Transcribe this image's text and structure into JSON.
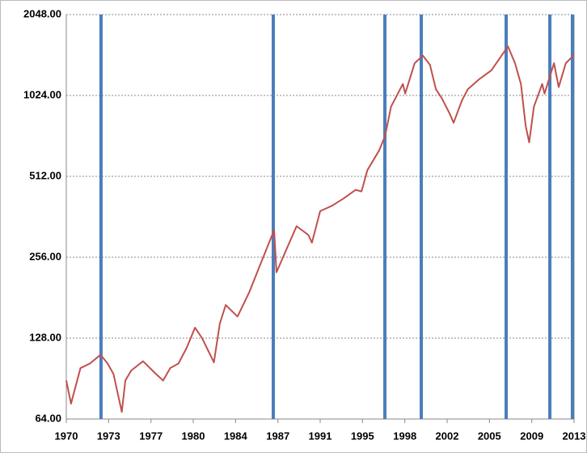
{
  "chart_data": {
    "type": "line",
    "x": [
      1970.0,
      1970.4,
      1971.2,
      1972.0,
      1972.9,
      1973.5,
      1974.0,
      1974.7,
      1975.0,
      1975.5,
      1976.5,
      1977.5,
      1978.2,
      1978.8,
      1979.5,
      1980.2,
      1980.9,
      1981.5,
      1982.5,
      1983.0,
      1983.5,
      1984.5,
      1985.5,
      1986.5,
      1987.6,
      1987.8,
      1988.5,
      1989.5,
      1990.5,
      1990.8,
      1991.5,
      1992.5,
      1993.5,
      1994.5,
      1995.0,
      1995.5,
      1996.5,
      1997.0,
      1997.5,
      1998.5,
      1998.7,
      1999.5,
      2000.2,
      2000.8,
      2001.3,
      2001.8,
      2002.5,
      2002.8,
      2003.5,
      2004.0,
      2005.0,
      2006.0,
      2007.4,
      2008.0,
      2008.5,
      2008.9,
      2009.2,
      2009.6,
      2010.3,
      2010.5,
      2011.3,
      2011.7,
      2012.3,
      2012.8,
      2013.0
    ],
    "values": [
      89,
      73,
      99,
      103,
      111,
      103,
      94,
      68,
      89,
      97,
      105,
      95,
      89,
      99,
      103,
      118,
      140,
      128,
      104,
      145,
      170,
      154,
      190,
      245,
      323,
      225,
      265,
      334,
      310,
      290,
      380,
      398,
      424,
      456,
      450,
      540,
      640,
      725,
      930,
      1130,
      1040,
      1350,
      1440,
      1330,
      1080,
      1000,
      870,
      810,
      980,
      1080,
      1180,
      1270,
      1560,
      1350,
      1130,
      790,
      685,
      930,
      1130,
      1040,
      1350,
      1100,
      1350,
      1420,
      1460
    ],
    "color": "#c0504d",
    "vertical_lines": [
      1972.94,
      1987.53,
      1996.98,
      2000.06,
      2007.25,
      2010.95,
      2012.86
    ],
    "vertical_line_color": "#4a7ebb",
    "xlim": [
      1970,
      2013
    ],
    "xticks": [
      1970,
      {
        "value": 1973.58,
        "label": "1973"
      },
      {
        "value": 1977.17,
        "label": "1977"
      },
      {
        "value": 1980.75,
        "label": "1980"
      },
      {
        "value": 1984.33,
        "label": "1984"
      },
      {
        "value": 1987.92,
        "label": "1987"
      },
      {
        "value": 1991.5,
        "label": "1991"
      },
      {
        "value": 1995.08,
        "label": "1995"
      },
      {
        "value": 1998.67,
        "label": "1998"
      },
      {
        "value": 2002.25,
        "label": "2002"
      },
      {
        "value": 2005.83,
        "label": "2005"
      },
      {
        "value": 2009.42,
        "label": "2009"
      },
      2013
    ],
    "ylim": [
      64,
      2048
    ],
    "yticks": [
      {
        "value": 64,
        "label": "64.00"
      },
      {
        "value": 128,
        "label": "128.00"
      },
      {
        "value": 256,
        "label": "256.00"
      },
      {
        "value": 512,
        "label": "512.00"
      },
      {
        "value": 1024,
        "label": "1024.00"
      },
      {
        "value": 2048,
        "label": "2048.00"
      }
    ],
    "yscale": "log",
    "grid": true
  }
}
